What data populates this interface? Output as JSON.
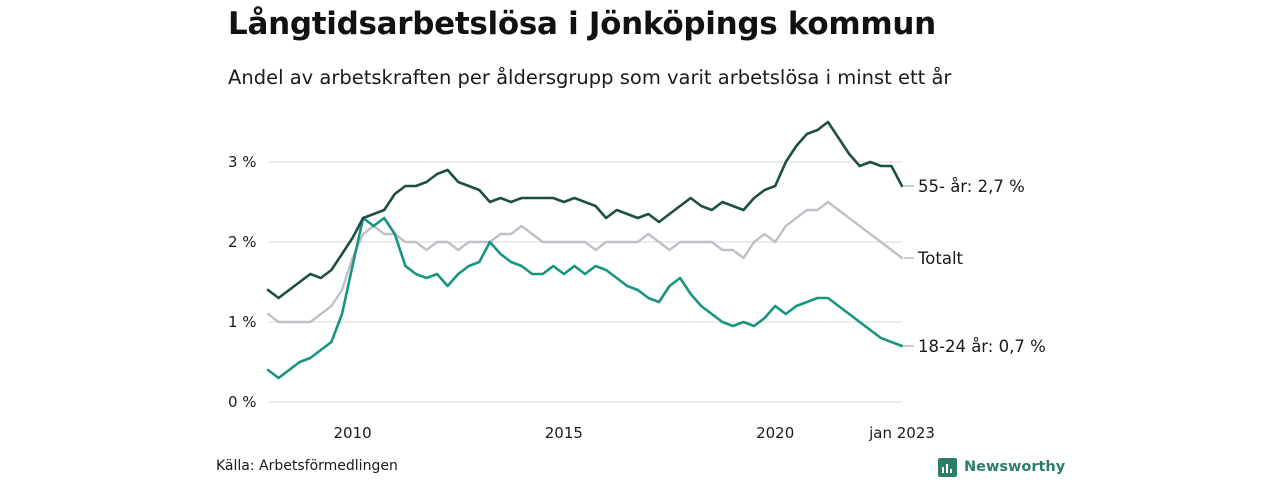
{
  "title": "Långtidsarbetslösa i Jönköpings kommun",
  "subtitle": "Andel av arbetskraften per åldersgrupp som varit arbetslösa i minst ett år",
  "source": "Källa: Arbetsförmedlingen",
  "brand": "Newsworthy",
  "colors": {
    "55_plus": "#1d4f45",
    "total": "#c3bfc9",
    "18_24": "#17957f",
    "grid": "#d9d9d9",
    "brand": "#2e7d6b"
  },
  "chart_data": {
    "type": "line",
    "y_ticks": [
      {
        "value": 0,
        "label": "0 %"
      },
      {
        "value": 1,
        "label": "1 %"
      },
      {
        "value": 2,
        "label": "2 %"
      },
      {
        "value": 3,
        "label": "3 %"
      }
    ],
    "x_ticks": [
      {
        "value": 2010,
        "label": "2010"
      },
      {
        "value": 2015,
        "label": "2015"
      },
      {
        "value": 2020,
        "label": "2020"
      },
      {
        "value": 2023,
        "label": "jan 2023"
      }
    ],
    "x_range": [
      2008.0,
      2023.0
    ],
    "y_range": [
      0,
      3.6
    ],
    "grid": true,
    "series": [
      {
        "key": "55_plus",
        "end_label": "55- år: 2,7 %",
        "x": [
          2008.0,
          2008.25,
          2008.5,
          2008.75,
          2009.0,
          2009.25,
          2009.5,
          2009.75,
          2010.0,
          2010.25,
          2010.5,
          2010.75,
          2011.0,
          2011.25,
          2011.5,
          2011.75,
          2012.0,
          2012.25,
          2012.5,
          2012.75,
          2013.0,
          2013.25,
          2013.5,
          2013.75,
          2014.0,
          2014.25,
          2014.5,
          2014.75,
          2015.0,
          2015.25,
          2015.5,
          2015.75,
          2016.0,
          2016.25,
          2016.5,
          2016.75,
          2017.0,
          2017.25,
          2017.5,
          2017.75,
          2018.0,
          2018.25,
          2018.5,
          2018.75,
          2019.0,
          2019.25,
          2019.5,
          2019.75,
          2020.0,
          2020.25,
          2020.5,
          2020.75,
          2021.0,
          2021.25,
          2021.5,
          2021.75,
          2022.0,
          2022.25,
          2022.5,
          2022.75,
          2023.0
        ],
        "y": [
          1.4,
          1.3,
          1.4,
          1.5,
          1.6,
          1.55,
          1.65,
          1.85,
          2.05,
          2.3,
          2.35,
          2.4,
          2.6,
          2.7,
          2.7,
          2.75,
          2.85,
          2.9,
          2.75,
          2.7,
          2.65,
          2.5,
          2.55,
          2.5,
          2.55,
          2.55,
          2.55,
          2.55,
          2.5,
          2.55,
          2.5,
          2.45,
          2.3,
          2.4,
          2.35,
          2.3,
          2.35,
          2.25,
          2.35,
          2.45,
          2.55,
          2.45,
          2.4,
          2.5,
          2.45,
          2.4,
          2.55,
          2.65,
          2.7,
          3.0,
          3.2,
          3.35,
          3.4,
          3.5,
          3.3,
          3.1,
          2.95,
          3.0,
          2.95,
          2.95,
          2.7
        ]
      },
      {
        "key": "total",
        "end_label": "Totalt",
        "x": [
          2008.0,
          2008.25,
          2008.5,
          2008.75,
          2009.0,
          2009.25,
          2009.5,
          2009.75,
          2010.0,
          2010.25,
          2010.5,
          2010.75,
          2011.0,
          2011.25,
          2011.5,
          2011.75,
          2012.0,
          2012.25,
          2012.5,
          2012.75,
          2013.0,
          2013.25,
          2013.5,
          2013.75,
          2014.0,
          2014.25,
          2014.5,
          2014.75,
          2015.0,
          2015.25,
          2015.5,
          2015.75,
          2016.0,
          2016.25,
          2016.5,
          2016.75,
          2017.0,
          2017.25,
          2017.5,
          2017.75,
          2018.0,
          2018.25,
          2018.5,
          2018.75,
          2019.0,
          2019.25,
          2019.5,
          2019.75,
          2020.0,
          2020.25,
          2020.5,
          2020.75,
          2021.0,
          2021.25,
          2021.5,
          2021.75,
          2022.0,
          2022.25,
          2022.5,
          2022.75,
          2023.0
        ],
        "y": [
          1.1,
          1.0,
          1.0,
          1.0,
          1.0,
          1.1,
          1.2,
          1.4,
          1.8,
          2.1,
          2.2,
          2.1,
          2.1,
          2.0,
          2.0,
          1.9,
          2.0,
          2.0,
          1.9,
          2.0,
          2.0,
          2.0,
          2.1,
          2.1,
          2.2,
          2.1,
          2.0,
          2.0,
          2.0,
          2.0,
          2.0,
          1.9,
          2.0,
          2.0,
          2.0,
          2.0,
          2.1,
          2.0,
          1.9,
          2.0,
          2.0,
          2.0,
          2.0,
          1.9,
          1.9,
          1.8,
          2.0,
          2.1,
          2.0,
          2.2,
          2.3,
          2.4,
          2.4,
          2.5,
          2.4,
          2.3,
          2.2,
          2.1,
          2.0,
          1.9,
          1.8
        ]
      },
      {
        "key": "18_24",
        "end_label": "18-24 år: 0,7 %",
        "x": [
          2008.0,
          2008.25,
          2008.5,
          2008.75,
          2009.0,
          2009.25,
          2009.5,
          2009.75,
          2010.0,
          2010.25,
          2010.5,
          2010.75,
          2011.0,
          2011.25,
          2011.5,
          2011.75,
          2012.0,
          2012.25,
          2012.5,
          2012.75,
          2013.0,
          2013.25,
          2013.5,
          2013.75,
          2014.0,
          2014.25,
          2014.5,
          2014.75,
          2015.0,
          2015.25,
          2015.5,
          2015.75,
          2016.0,
          2016.25,
          2016.5,
          2016.75,
          2017.0,
          2017.25,
          2017.5,
          2017.75,
          2018.0,
          2018.25,
          2018.5,
          2018.75,
          2019.0,
          2019.25,
          2019.5,
          2019.75,
          2020.0,
          2020.25,
          2020.5,
          2020.75,
          2021.0,
          2021.25,
          2021.5,
          2021.75,
          2022.0,
          2022.25,
          2022.5,
          2022.75,
          2023.0
        ],
        "y": [
          0.4,
          0.3,
          0.4,
          0.5,
          0.55,
          0.65,
          0.75,
          1.1,
          1.7,
          2.3,
          2.2,
          2.3,
          2.1,
          1.7,
          1.6,
          1.55,
          1.6,
          1.45,
          1.6,
          1.7,
          1.75,
          2.0,
          1.85,
          1.75,
          1.7,
          1.6,
          1.6,
          1.7,
          1.6,
          1.7,
          1.6,
          1.7,
          1.65,
          1.55,
          1.45,
          1.4,
          1.3,
          1.25,
          1.45,
          1.55,
          1.35,
          1.2,
          1.1,
          1.0,
          0.95,
          1.0,
          0.95,
          1.05,
          1.2,
          1.1,
          1.2,
          1.25,
          1.3,
          1.3,
          1.2,
          1.1,
          1.0,
          0.9,
          0.8,
          0.75,
          0.7
        ]
      }
    ]
  }
}
